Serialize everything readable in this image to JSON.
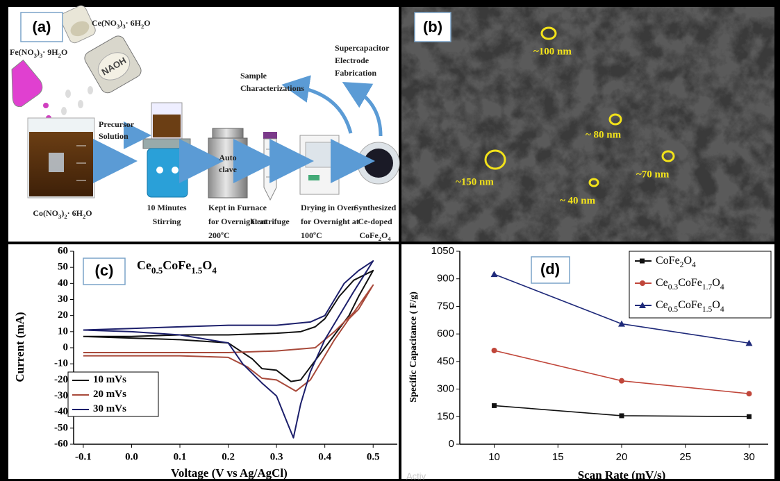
{
  "panel_a": {
    "label": "(a)",
    "ce_salt": "Ce(NO3)3· 6H2O",
    "fe_salt": "Fe(NO3)3· 9H2O",
    "naoh": "NAOH",
    "precursor": [
      "Precursor",
      "Solution"
    ],
    "characterization": [
      "Sample",
      "Characterizations"
    ],
    "fabrication": [
      "Supercapacitor",
      "Electrode",
      "Fabrication"
    ],
    "autoclave": [
      "Auto",
      "clave"
    ],
    "co_salt": "Co(NO3)2· 6H2O",
    "stirring": [
      "10 Minutes",
      "Stirring"
    ],
    "furnace": [
      "Kept in Furnace",
      "for Overnight at",
      "200ºC"
    ],
    "centrifuge": "Centrifuge",
    "drying": [
      "Drying  in Oven",
      "for Overnight at",
      "100ºC"
    ],
    "product": [
      "Synthesized",
      "Ce-doped",
      "CoFe2O4"
    ]
  },
  "panel_b": {
    "label": "(b)",
    "sizes": [
      "~100 nm",
      "~ 80 nm",
      "~150 nm",
      "~ 40 nm",
      "~70 nm"
    ]
  },
  "chart_data": [
    {
      "type": "line",
      "panel_label": "(c)",
      "title": "Ce0.5CoFe1.5O4",
      "x_label": "Voltage (V vs Ag/AgCl)",
      "y_label": "Current (mA)",
      "xlim": [
        -0.12,
        0.55
      ],
      "ylim": [
        -60,
        60
      ],
      "xticks": [
        -0.1,
        {
          "value": 0,
          "label": "0.0"
        },
        0.1,
        0.2,
        0.3,
        0.4,
        0.5
      ],
      "yticks": [
        60,
        50,
        40,
        30,
        20,
        10,
        0,
        -10,
        -20,
        -30,
        -40,
        -50,
        -60
      ],
      "legend": "lower left",
      "series": [
        {
          "name": "10 mVs",
          "color": "#111111",
          "x": [
            -0.1,
            0.0,
            0.1,
            0.2,
            0.3,
            0.35,
            0.38,
            0.4,
            0.43,
            0.46,
            0.5,
            0.47,
            0.45,
            0.42,
            0.4,
            0.37,
            0.35,
            0.33,
            0.3,
            0.27,
            0.25,
            0.2,
            0.1,
            0.0,
            -0.1
          ],
          "values": [
            7,
            7,
            8,
            8,
            9,
            10,
            13,
            18,
            32,
            42,
            48,
            32,
            20,
            8,
            0,
            -12,
            -20,
            -21,
            -14,
            -13,
            -7,
            3,
            5,
            6,
            7
          ]
        },
        {
          "name": "20 mVs",
          "color": "#a8493a",
          "x": [
            -0.1,
            0.0,
            0.1,
            0.2,
            0.3,
            0.38,
            0.42,
            0.46,
            0.5,
            0.47,
            0.45,
            0.42,
            0.4,
            0.37,
            0.34,
            0.3,
            0.27,
            0.24,
            0.2,
            0.1,
            0.0,
            -0.1
          ],
          "values": [
            -3,
            -3,
            -3,
            -3,
            -2,
            0,
            10,
            22,
            39,
            24,
            18,
            5,
            -5,
            -20,
            -27,
            -20,
            -19,
            -12,
            -6,
            -5,
            -5,
            -5
          ]
        },
        {
          "name": "30 mVs",
          "color": "#1c1f6b",
          "x": [
            -0.1,
            0.0,
            0.1,
            0.2,
            0.3,
            0.37,
            0.4,
            0.44,
            0.47,
            0.5,
            0.46,
            0.43,
            0.4,
            0.37,
            0.35,
            0.335,
            0.32,
            0.3,
            0.27,
            0.23,
            0.2,
            0.1,
            0.0,
            -0.1
          ],
          "values": [
            11,
            12,
            13,
            14,
            14,
            16,
            20,
            40,
            48,
            54,
            35,
            20,
            5,
            -15,
            -35,
            -56,
            -45,
            -30,
            -22,
            -10,
            3,
            8,
            10,
            11
          ]
        }
      ]
    },
    {
      "type": "line",
      "panel_label": "(d)",
      "x_label": "Scan Rate (mV/s)",
      "y_label": "Specific Capacitance ( F/g)",
      "x": [
        10,
        20,
        30
      ],
      "xlim": [
        7.3,
        31.5
      ],
      "ylim": [
        0,
        1050
      ],
      "xticks": [
        10,
        15,
        20,
        25,
        30
      ],
      "yticks": [
        0,
        150,
        300,
        450,
        600,
        750,
        900,
        1050
      ],
      "legend": "upper right",
      "series": [
        {
          "name": "CoFe2O4",
          "color": "#111111",
          "marker": "square",
          "values": [
            210,
            155,
            150
          ]
        },
        {
          "name": "Ce0.3CoFe1.7O4",
          "color": "#c0463a",
          "marker": "circle",
          "values": [
            510,
            345,
            275
          ]
        },
        {
          "name": "Ce0.5CoFe1.5O4",
          "color": "#1f2a7a",
          "marker": "triangle",
          "values": [
            925,
            655,
            550
          ]
        }
      ]
    }
  ],
  "watermark": "Activ"
}
